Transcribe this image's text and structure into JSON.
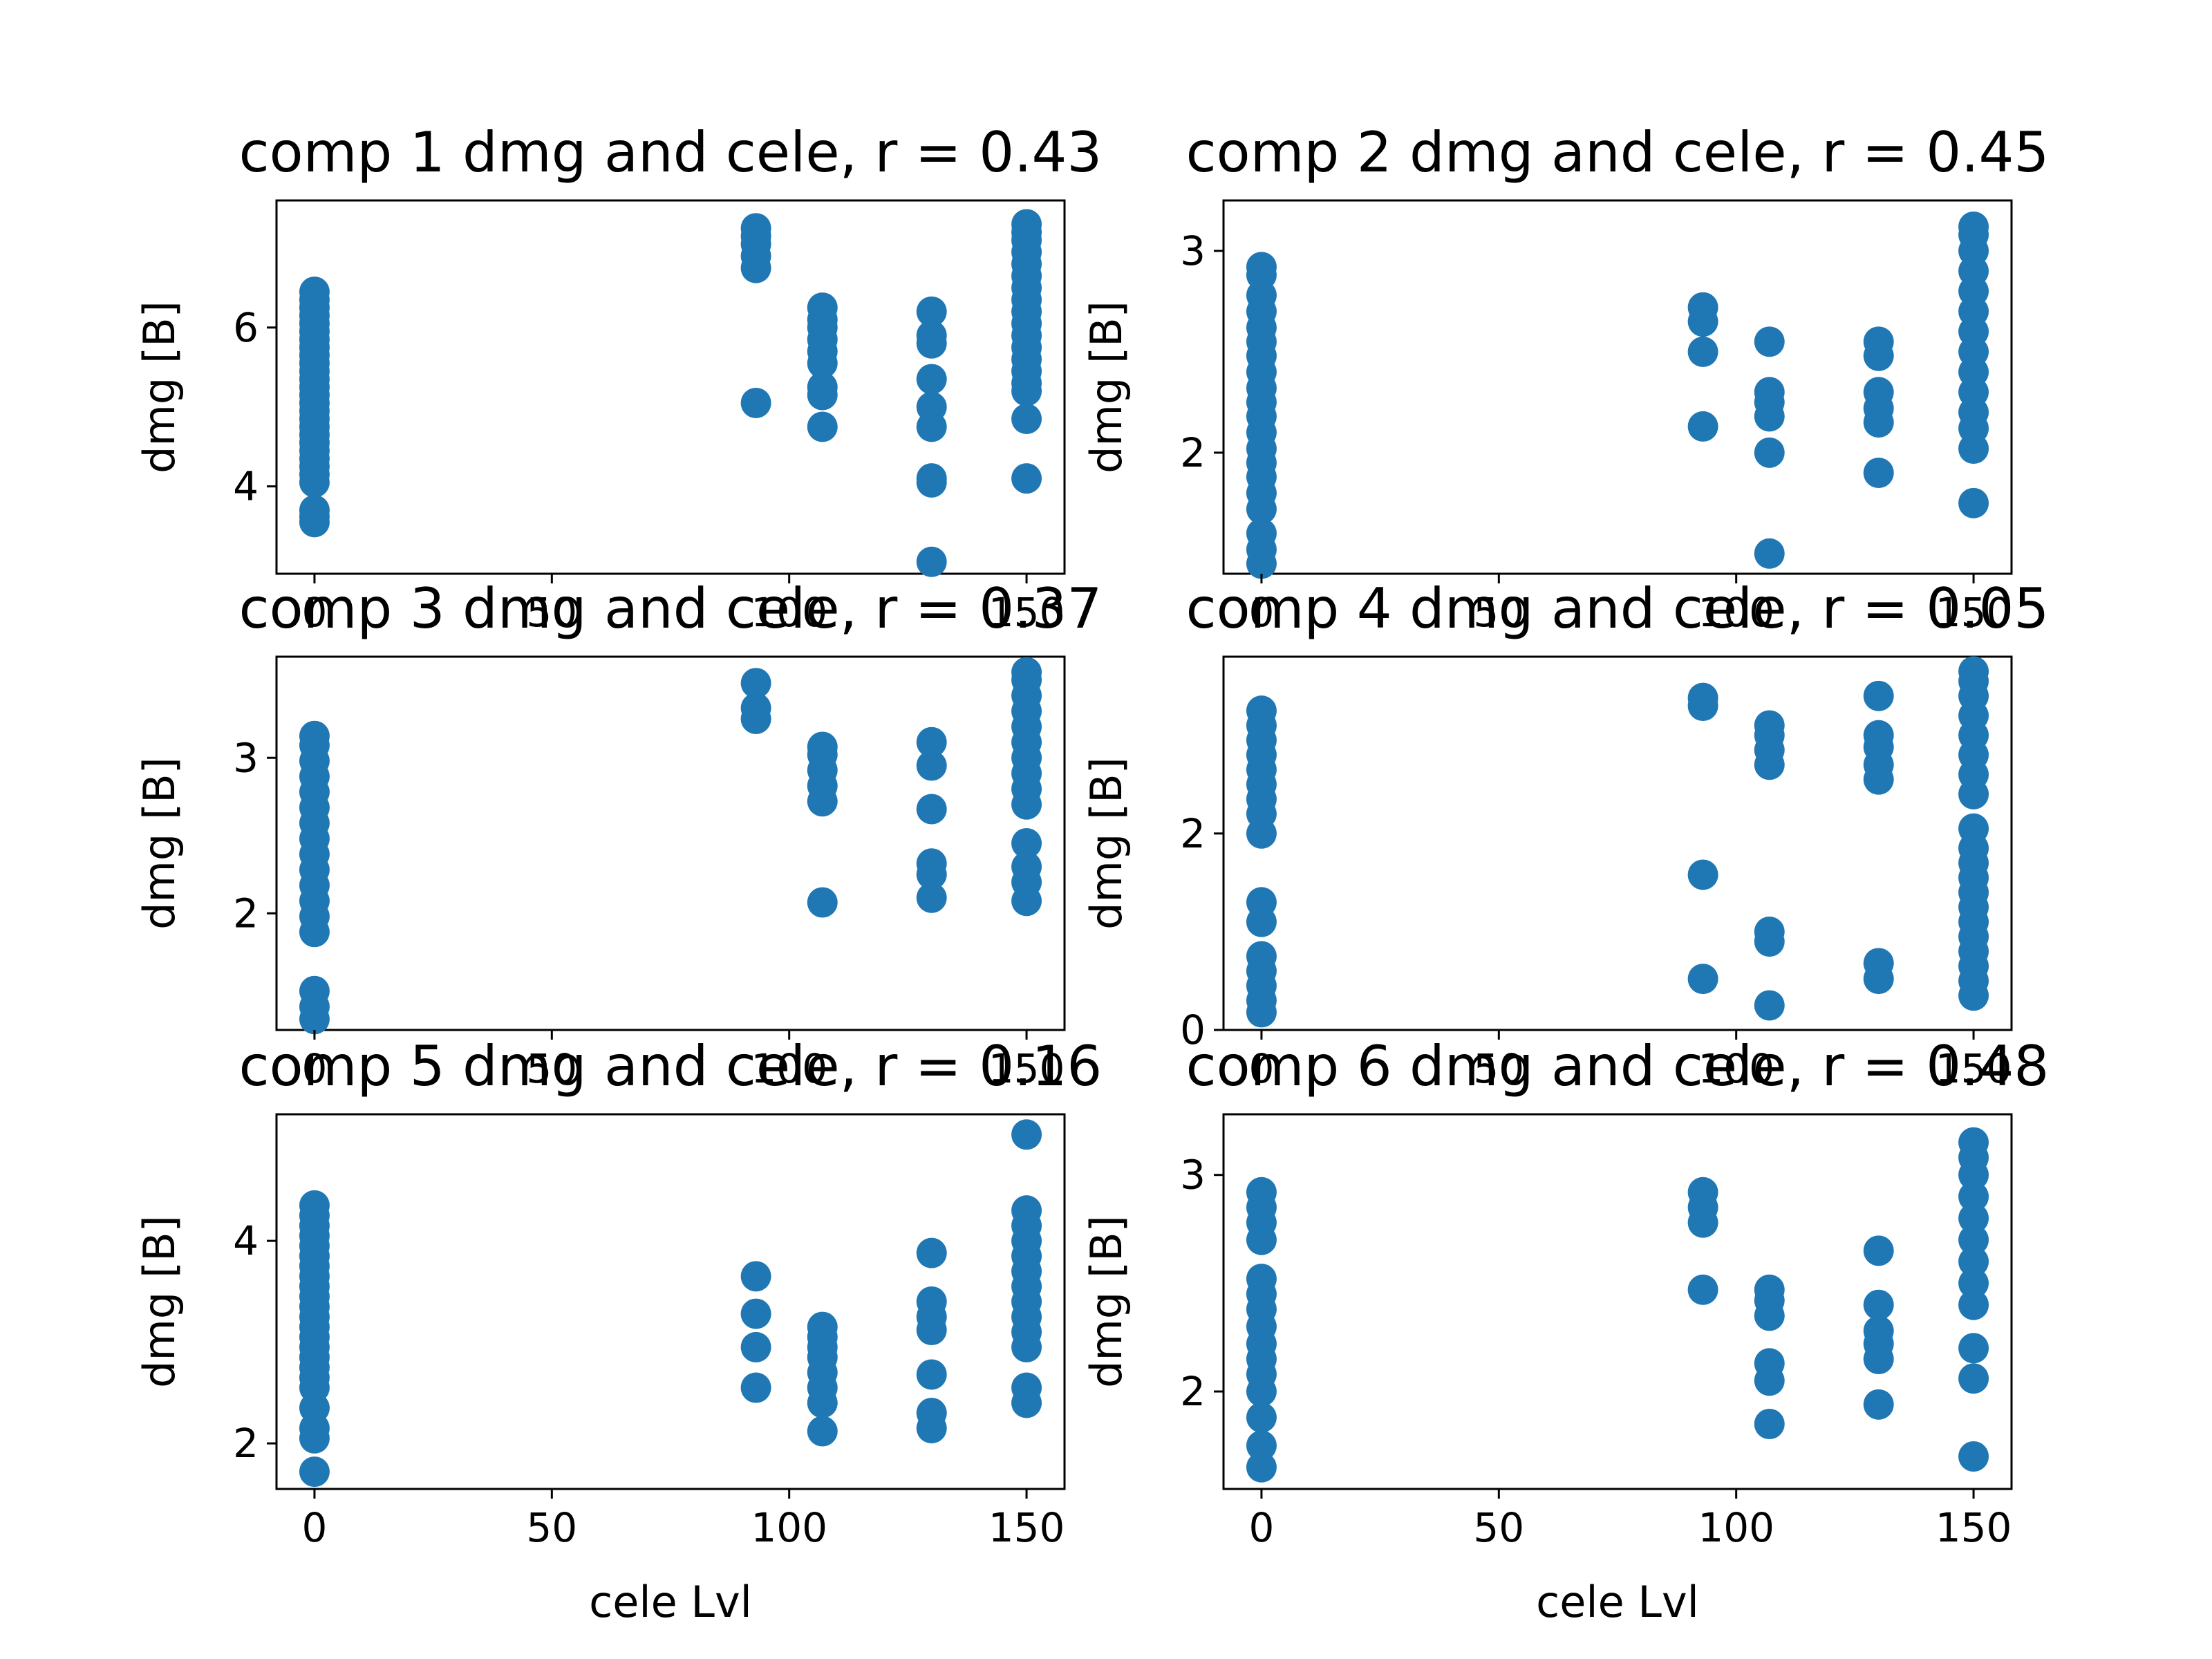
{
  "chart_data": [
    {
      "type": "scatter",
      "title": "comp 1 dmg and cele, r = 0.43",
      "xlabel": "",
      "ylabel": "dmg [B]",
      "xlim": [
        -8,
        158
      ],
      "ylim": [
        2.9,
        7.6
      ],
      "xticks": [
        0,
        50,
        100,
        150
      ],
      "yticks": [
        4,
        6
      ],
      "color": "#1f77b4",
      "points": [
        [
          0,
          3.55
        ],
        [
          0,
          3.62
        ],
        [
          0,
          3.7
        ],
        [
          0,
          4.05
        ],
        [
          0,
          4.15
        ],
        [
          0,
          4.25
        ],
        [
          0,
          4.35
        ],
        [
          0,
          4.45
        ],
        [
          0,
          4.55
        ],
        [
          0,
          4.65
        ],
        [
          0,
          4.75
        ],
        [
          0,
          4.85
        ],
        [
          0,
          4.95
        ],
        [
          0,
          5.05
        ],
        [
          0,
          5.15
        ],
        [
          0,
          5.25
        ],
        [
          0,
          5.35
        ],
        [
          0,
          5.45
        ],
        [
          0,
          5.55
        ],
        [
          0,
          5.65
        ],
        [
          0,
          5.75
        ],
        [
          0,
          5.85
        ],
        [
          0,
          5.95
        ],
        [
          0,
          6.05
        ],
        [
          0,
          6.15
        ],
        [
          0,
          6.25
        ],
        [
          0,
          6.35
        ],
        [
          0,
          6.45
        ],
        [
          93,
          5.05
        ],
        [
          93,
          6.75
        ],
        [
          93,
          6.9
        ],
        [
          93,
          7.05
        ],
        [
          93,
          7.15
        ],
        [
          93,
          7.25
        ],
        [
          107,
          4.75
        ],
        [
          107,
          5.15
        ],
        [
          107,
          5.25
        ],
        [
          107,
          5.55
        ],
        [
          107,
          5.7
        ],
        [
          107,
          5.85
        ],
        [
          107,
          6.0
        ],
        [
          107,
          6.1
        ],
        [
          107,
          6.25
        ],
        [
          130,
          3.05
        ],
        [
          130,
          4.05
        ],
        [
          130,
          4.1
        ],
        [
          130,
          4.75
        ],
        [
          130,
          5.0
        ],
        [
          130,
          5.35
        ],
        [
          130,
          5.8
        ],
        [
          130,
          5.9
        ],
        [
          130,
          6.2
        ],
        [
          150,
          4.1
        ],
        [
          150,
          4.85
        ],
        [
          150,
          5.2
        ],
        [
          150,
          5.3
        ],
        [
          150,
          5.45
        ],
        [
          150,
          5.6
        ],
        [
          150,
          5.75
        ],
        [
          150,
          5.9
        ],
        [
          150,
          6.05
        ],
        [
          150,
          6.2
        ],
        [
          150,
          6.35
        ],
        [
          150,
          6.5
        ],
        [
          150,
          6.65
        ],
        [
          150,
          6.8
        ],
        [
          150,
          6.95
        ],
        [
          150,
          7.1
        ],
        [
          150,
          7.2
        ],
        [
          150,
          7.3
        ]
      ]
    },
    {
      "type": "scatter",
      "title": "comp 2 dmg and cele, r = 0.45",
      "xlabel": "",
      "ylabel": "dmg [B]",
      "xlim": [
        -8,
        158
      ],
      "ylim": [
        1.4,
        3.25
      ],
      "xticks": [
        0,
        50,
        100,
        150
      ],
      "yticks": [
        2,
        3
      ],
      "color": "#1f77b4",
      "points": [
        [
          0,
          1.45
        ],
        [
          0,
          1.52
        ],
        [
          0,
          1.6
        ],
        [
          0,
          1.72
        ],
        [
          0,
          1.8
        ],
        [
          0,
          1.88
        ],
        [
          0,
          1.95
        ],
        [
          0,
          2.02
        ],
        [
          0,
          2.1
        ],
        [
          0,
          2.18
        ],
        [
          0,
          2.25
        ],
        [
          0,
          2.32
        ],
        [
          0,
          2.4
        ],
        [
          0,
          2.48
        ],
        [
          0,
          2.55
        ],
        [
          0,
          2.62
        ],
        [
          0,
          2.7
        ],
        [
          0,
          2.78
        ],
        [
          0,
          2.88
        ],
        [
          0,
          2.92
        ],
        [
          93,
          2.13
        ],
        [
          93,
          2.5
        ],
        [
          93,
          2.65
        ],
        [
          93,
          2.72
        ],
        [
          107,
          1.5
        ],
        [
          107,
          2.0
        ],
        [
          107,
          2.18
        ],
        [
          107,
          2.25
        ],
        [
          107,
          2.3
        ],
        [
          107,
          2.55
        ],
        [
          130,
          1.9
        ],
        [
          130,
          2.15
        ],
        [
          130,
          2.22
        ],
        [
          130,
          2.3
        ],
        [
          130,
          2.48
        ],
        [
          130,
          2.55
        ],
        [
          150,
          1.75
        ],
        [
          150,
          2.02
        ],
        [
          150,
          2.12
        ],
        [
          150,
          2.2
        ],
        [
          150,
          2.3
        ],
        [
          150,
          2.4
        ],
        [
          150,
          2.5
        ],
        [
          150,
          2.6
        ],
        [
          150,
          2.7
        ],
        [
          150,
          2.8
        ],
        [
          150,
          2.9
        ],
        [
          150,
          3.0
        ],
        [
          150,
          3.08
        ],
        [
          150,
          3.12
        ]
      ]
    },
    {
      "type": "scatter",
      "title": "comp 3 dmg and cele, r = 0.37",
      "xlabel": "",
      "ylabel": "dmg [B]",
      "xlim": [
        -8,
        158
      ],
      "ylim": [
        1.25,
        3.65
      ],
      "xticks": [
        0,
        50,
        100,
        150
      ],
      "yticks": [
        2,
        3
      ],
      "color": "#1f77b4",
      "points": [
        [
          0,
          1.32
        ],
        [
          0,
          1.4
        ],
        [
          0,
          1.5
        ],
        [
          0,
          1.88
        ],
        [
          0,
          1.98
        ],
        [
          0,
          2.08
        ],
        [
          0,
          2.18
        ],
        [
          0,
          2.28
        ],
        [
          0,
          2.38
        ],
        [
          0,
          2.48
        ],
        [
          0,
          2.58
        ],
        [
          0,
          2.68
        ],
        [
          0,
          2.78
        ],
        [
          0,
          2.88
        ],
        [
          0,
          2.98
        ],
        [
          0,
          3.08
        ],
        [
          0,
          3.14
        ],
        [
          93,
          3.25
        ],
        [
          93,
          3.32
        ],
        [
          93,
          3.48
        ],
        [
          107,
          2.07
        ],
        [
          107,
          2.72
        ],
        [
          107,
          2.82
        ],
        [
          107,
          2.92
        ],
        [
          107,
          3.02
        ],
        [
          107,
          3.07
        ],
        [
          130,
          2.1
        ],
        [
          130,
          2.25
        ],
        [
          130,
          2.32
        ],
        [
          130,
          2.67
        ],
        [
          130,
          2.95
        ],
        [
          130,
          3.1
        ],
        [
          150,
          2.08
        ],
        [
          150,
          2.2
        ],
        [
          150,
          2.3
        ],
        [
          150,
          2.45
        ],
        [
          150,
          2.7
        ],
        [
          150,
          2.8
        ],
        [
          150,
          2.9
        ],
        [
          150,
          3.0
        ],
        [
          150,
          3.1
        ],
        [
          150,
          3.2
        ],
        [
          150,
          3.3
        ],
        [
          150,
          3.4
        ],
        [
          150,
          3.5
        ],
        [
          150,
          3.55
        ]
      ]
    },
    {
      "type": "scatter",
      "title": "comp 4 dmg and cele, r = 0.05",
      "xlabel": "",
      "ylabel": "dmg [B]",
      "xlim": [
        -8,
        158
      ],
      "ylim": [
        0,
        3.8
      ],
      "xticks": [
        0,
        50,
        100,
        150
      ],
      "yticks": [
        0,
        2
      ],
      "color": "#1f77b4",
      "points": [
        [
          0,
          0.18
        ],
        [
          0,
          0.3
        ],
        [
          0,
          0.45
        ],
        [
          0,
          0.6
        ],
        [
          0,
          0.75
        ],
        [
          0,
          1.1
        ],
        [
          0,
          1.3
        ],
        [
          0,
          2.0
        ],
        [
          0,
          2.2
        ],
        [
          0,
          2.35
        ],
        [
          0,
          2.5
        ],
        [
          0,
          2.65
        ],
        [
          0,
          2.8
        ],
        [
          0,
          2.95
        ],
        [
          0,
          3.1
        ],
        [
          0,
          3.25
        ],
        [
          93,
          0.52
        ],
        [
          93,
          1.58
        ],
        [
          93,
          3.3
        ],
        [
          93,
          3.38
        ],
        [
          107,
          0.25
        ],
        [
          107,
          0.9
        ],
        [
          107,
          1.0
        ],
        [
          107,
          2.7
        ],
        [
          107,
          2.85
        ],
        [
          107,
          3.0
        ],
        [
          107,
          3.1
        ],
        [
          130,
          0.52
        ],
        [
          130,
          0.68
        ],
        [
          130,
          2.55
        ],
        [
          130,
          2.7
        ],
        [
          130,
          2.88
        ],
        [
          130,
          3.0
        ],
        [
          130,
          3.4
        ],
        [
          150,
          0.35
        ],
        [
          150,
          0.5
        ],
        [
          150,
          0.65
        ],
        [
          150,
          0.8
        ],
        [
          150,
          0.95
        ],
        [
          150,
          1.1
        ],
        [
          150,
          1.25
        ],
        [
          150,
          1.4
        ],
        [
          150,
          1.55
        ],
        [
          150,
          1.7
        ],
        [
          150,
          1.85
        ],
        [
          150,
          2.05
        ],
        [
          150,
          2.4
        ],
        [
          150,
          2.6
        ],
        [
          150,
          2.8
        ],
        [
          150,
          3.0
        ],
        [
          150,
          3.2
        ],
        [
          150,
          3.4
        ],
        [
          150,
          3.55
        ],
        [
          150,
          3.65
        ]
      ]
    },
    {
      "type": "scatter",
      "title": "comp 5 dmg and cele, r = 0.16",
      "xlabel": "cele Lvl",
      "ylabel": "dmg [B]",
      "xlim": [
        -8,
        158
      ],
      "ylim": [
        1.55,
        5.25
      ],
      "xticks": [
        0,
        50,
        100,
        150
      ],
      "yticks": [
        2,
        4
      ],
      "color": "#1f77b4",
      "points": [
        [
          0,
          1.72
        ],
        [
          0,
          2.05
        ],
        [
          0,
          2.15
        ],
        [
          0,
          2.35
        ],
        [
          0,
          2.55
        ],
        [
          0,
          2.65
        ],
        [
          0,
          2.75
        ],
        [
          0,
          2.85
        ],
        [
          0,
          2.95
        ],
        [
          0,
          3.05
        ],
        [
          0,
          3.15
        ],
        [
          0,
          3.25
        ],
        [
          0,
          3.35
        ],
        [
          0,
          3.45
        ],
        [
          0,
          3.55
        ],
        [
          0,
          3.65
        ],
        [
          0,
          3.75
        ],
        [
          0,
          3.85
        ],
        [
          0,
          3.95
        ],
        [
          0,
          4.05
        ],
        [
          0,
          4.15
        ],
        [
          0,
          4.25
        ],
        [
          0,
          4.35
        ],
        [
          93,
          2.55
        ],
        [
          93,
          2.95
        ],
        [
          93,
          3.28
        ],
        [
          93,
          3.65
        ],
        [
          107,
          2.12
        ],
        [
          107,
          2.4
        ],
        [
          107,
          2.55
        ],
        [
          107,
          2.7
        ],
        [
          107,
          2.85
        ],
        [
          107,
          2.95
        ],
        [
          107,
          3.05
        ],
        [
          107,
          3.15
        ],
        [
          130,
          2.15
        ],
        [
          130,
          2.3
        ],
        [
          130,
          2.68
        ],
        [
          130,
          3.12
        ],
        [
          130,
          3.25
        ],
        [
          130,
          3.4
        ],
        [
          130,
          3.88
        ],
        [
          150,
          2.4
        ],
        [
          150,
          2.55
        ],
        [
          150,
          2.95
        ],
        [
          150,
          3.1
        ],
        [
          150,
          3.25
        ],
        [
          150,
          3.4
        ],
        [
          150,
          3.55
        ],
        [
          150,
          3.7
        ],
        [
          150,
          3.85
        ],
        [
          150,
          4.0
        ],
        [
          150,
          4.15
        ],
        [
          150,
          4.3
        ],
        [
          150,
          5.05
        ]
      ]
    },
    {
      "type": "scatter",
      "title": "comp 6 dmg and cele, r = 0.48",
      "xlabel": "cele Lvl",
      "ylabel": "dmg [B]",
      "xlim": [
        -8,
        158
      ],
      "ylim": [
        1.55,
        3.28
      ],
      "xticks": [
        0,
        50,
        100,
        150
      ],
      "yticks": [
        2,
        3
      ],
      "color": "#1f77b4",
      "points": [
        [
          0,
          1.65
        ],
        [
          0,
          1.75
        ],
        [
          0,
          1.88
        ],
        [
          0,
          2.0
        ],
        [
          0,
          2.08
        ],
        [
          0,
          2.15
        ],
        [
          0,
          2.22
        ],
        [
          0,
          2.3
        ],
        [
          0,
          2.38
        ],
        [
          0,
          2.45
        ],
        [
          0,
          2.52
        ],
        [
          0,
          2.7
        ],
        [
          0,
          2.78
        ],
        [
          0,
          2.85
        ],
        [
          0,
          2.92
        ],
        [
          93,
          2.47
        ],
        [
          93,
          2.78
        ],
        [
          93,
          2.85
        ],
        [
          93,
          2.92
        ],
        [
          107,
          1.85
        ],
        [
          107,
          2.05
        ],
        [
          107,
          2.13
        ],
        [
          107,
          2.35
        ],
        [
          107,
          2.42
        ],
        [
          107,
          2.47
        ],
        [
          130,
          1.94
        ],
        [
          130,
          2.15
        ],
        [
          130,
          2.22
        ],
        [
          130,
          2.28
        ],
        [
          130,
          2.4
        ],
        [
          130,
          2.65
        ],
        [
          150,
          1.7
        ],
        [
          150,
          2.06
        ],
        [
          150,
          2.2
        ],
        [
          150,
          2.4
        ],
        [
          150,
          2.5
        ],
        [
          150,
          2.6
        ],
        [
          150,
          2.7
        ],
        [
          150,
          2.8
        ],
        [
          150,
          2.9
        ],
        [
          150,
          3.0
        ],
        [
          150,
          3.08
        ],
        [
          150,
          3.15
        ]
      ]
    }
  ]
}
